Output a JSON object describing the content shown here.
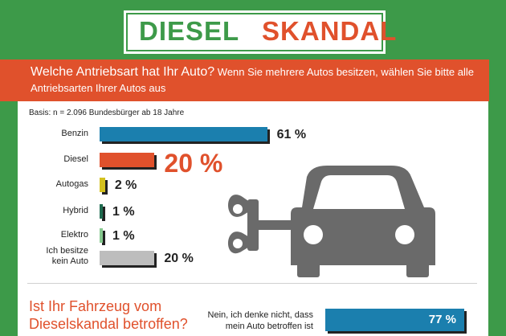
{
  "header": {
    "title_part1": "DIESEL",
    "title_part2": "SKANDAL"
  },
  "question": {
    "main": "Welche Antriebsart hat Ihr Auto?",
    "sub": "Wenn Sie mehrere Autos besitzen, wählen Sie bitte alle Antriebsarten Ihrer Autos aus"
  },
  "basis": "Basis: n = 2.096 Bundesbürger ab 18 Jahre",
  "chart_data": {
    "type": "bar",
    "orientation": "horizontal",
    "categories": [
      "Benzin",
      "Diesel",
      "Autogas",
      "Hybrid",
      "Elektro",
      "Ich besitze kein Auto"
    ],
    "values": [
      61,
      20,
      2,
      1,
      1,
      20
    ],
    "value_labels": [
      "61 %",
      "20 %",
      "2 %",
      "1 %",
      "1 %",
      "20 %"
    ],
    "colors": [
      "#1b7fae",
      "#e0512c",
      "#d4c11f",
      "#1e6b4f",
      "#86c98f",
      "#bdbdbd"
    ]
  },
  "question2": {
    "text": "Ist Ihr Fahrzeug vom Dieselskandal betroffen?",
    "answer": "Nein, ich denke nicht, dass mein Auto betroffen ist",
    "value": 77,
    "value_label": "77 %",
    "color": "#1b7fae"
  },
  "icons": {
    "car": "wind-up-car-icon"
  }
}
